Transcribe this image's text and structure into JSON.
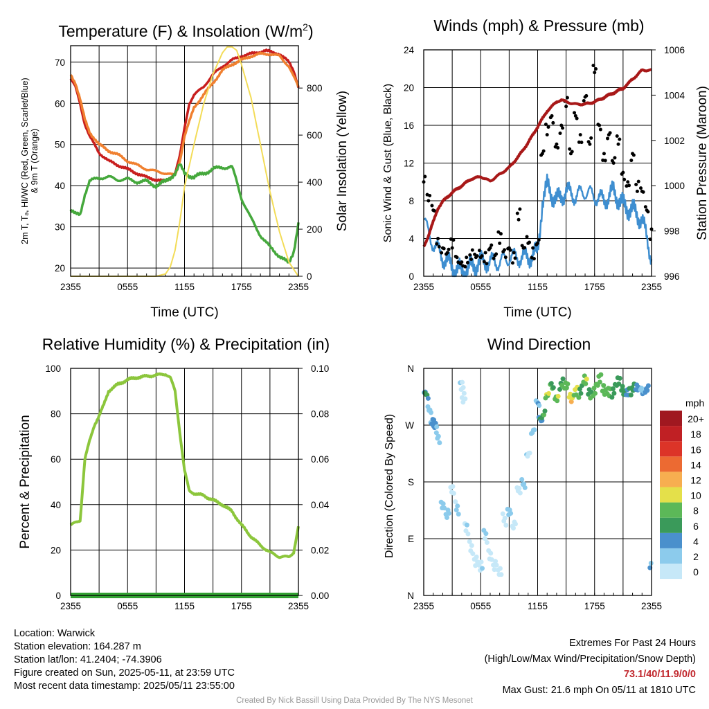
{
  "colors": {
    "red": "#c81e1e",
    "orange": "#f08030",
    "green": "#45a83c",
    "yellow": "#f3dc58",
    "blue": "#3e8ed0",
    "black": "#000000",
    "maroon": "#a81818",
    "rh": "#8cc63c",
    "precip": "#32a032"
  },
  "chart_data": [
    {
      "type": "line",
      "title": "Temperature (F) & Insolation (W/m²)",
      "xlabel": "Time (UTC)",
      "ylabel": "2m T, Td, HI/WC (Red, Green, Scarlet/Blue) & 9m T (Orange)",
      "ylabel_line1": "2m T, Tₔ, HI/WC (Red, Green, Scarlet/Blue)",
      "ylabel_line2": "& 9m T (Orange)",
      "y2label": "Solar Insolation (Yellow)",
      "x_ticks": [
        "2355",
        "0555",
        "1155",
        "1755",
        "2355"
      ],
      "ylim": [
        18,
        74
      ],
      "y_ticks": [
        20,
        30,
        40,
        50,
        60,
        70
      ],
      "y2lim": [
        0,
        980
      ],
      "y2_ticks": [
        0,
        200,
        400,
        600,
        800
      ],
      "grid": true,
      "series": [
        {
          "name": "2m T",
          "color_key": "red",
          "axis": "left",
          "x": [
            0,
            0.5,
            1,
            1.5,
            2,
            3,
            4,
            5,
            6,
            7,
            8,
            9,
            10,
            11,
            11.5,
            12,
            12.5,
            13,
            14,
            15,
            16,
            17,
            18,
            19,
            20,
            20.5,
            21,
            22,
            23,
            23.5,
            24
          ],
          "y": [
            66,
            64,
            60,
            55,
            52,
            48,
            46,
            45,
            44,
            43,
            42,
            41.5,
            41,
            43,
            47,
            54,
            60,
            62,
            64,
            67,
            69,
            70.5,
            71.5,
            72,
            72.5,
            72.8,
            72.5,
            72,
            70,
            68,
            64
          ]
        },
        {
          "name": "9m T",
          "color_key": "orange",
          "axis": "left",
          "x": [
            0,
            0.5,
            1,
            1.5,
            2,
            3,
            4,
            5,
            6,
            7,
            8,
            9,
            10,
            11,
            11.5,
            12,
            13,
            14,
            15,
            16,
            17,
            18,
            19,
            20,
            21,
            22,
            23,
            24
          ],
          "y": [
            67,
            65,
            61,
            56,
            53,
            50,
            48.5,
            47.5,
            46,
            45,
            44,
            43.5,
            43,
            42.5,
            46,
            52,
            59,
            62,
            65,
            68,
            69.5,
            70.5,
            71.5,
            72,
            72,
            71.5,
            69,
            64
          ]
        },
        {
          "name": "2m Td",
          "color_key": "green",
          "axis": "left",
          "x": [
            0,
            0.5,
            1,
            1.5,
            2,
            3,
            4,
            5,
            6,
            7,
            8,
            9,
            10,
            11,
            11.5,
            12,
            13,
            14,
            15,
            16,
            17,
            17.5,
            18,
            19,
            20,
            21,
            22,
            23,
            23.5,
            24
          ],
          "y": [
            34,
            33,
            33,
            38,
            41,
            42,
            42,
            41.5,
            41.5,
            41,
            41,
            40,
            41,
            43,
            45,
            43,
            42,
            43,
            44,
            44.5,
            44.5,
            41,
            37,
            32,
            28,
            25,
            23,
            21,
            24,
            31
          ]
        },
        {
          "name": "Solar Insolation",
          "color_key": "yellow",
          "axis": "right",
          "x": [
            0,
            9,
            10,
            10.5,
            11,
            11.5,
            12,
            13,
            14,
            15,
            16,
            16.5,
            17,
            17.5,
            18,
            19,
            20,
            21,
            22,
            23,
            24
          ],
          "y": [
            0,
            0,
            10,
            40,
            110,
            230,
            380,
            560,
            730,
            860,
            950,
            975,
            975,
            960,
            900,
            760,
            560,
            360,
            190,
            60,
            0
          ]
        }
      ]
    },
    {
      "type": "scatter",
      "title": "Winds (mph) & Pressure (mb)",
      "xlabel": "Time (UTC)",
      "ylabel": "Sonic Wind & Gust (Blue, Black)",
      "y2label": "Station Pressure (Maroon)",
      "x_ticks": [
        "2355",
        "0555",
        "1155",
        "1755",
        "2355"
      ],
      "ylim": [
        0,
        24
      ],
      "y_ticks": [
        0,
        4,
        8,
        12,
        16,
        20,
        24
      ],
      "y2lim": [
        996,
        1006
      ],
      "y2_ticks": [
        996,
        998,
        1000,
        1002,
        1004,
        1006
      ],
      "grid": true,
      "series": [
        {
          "name": "Sonic Wind",
          "color_key": "blue",
          "axis": "left",
          "style": "line",
          "x": [
            0,
            0.5,
            1,
            2,
            3,
            4,
            5,
            6,
            7,
            8,
            9,
            10,
            11,
            12,
            12.5,
            13,
            14,
            15,
            16,
            17,
            18,
            19,
            20,
            21,
            22,
            23,
            24
          ],
          "y": [
            6,
            4.5,
            3.5,
            2,
            1,
            0.5,
            1,
            1.5,
            1.5,
            1.5,
            2,
            2,
            2,
            2.5,
            8,
            9.5,
            8,
            9,
            8.5,
            9,
            8.5,
            8,
            9,
            7.5,
            7,
            6,
            2
          ]
        },
        {
          "name": "Gust",
          "color_key": "black",
          "axis": "left",
          "style": "points",
          "x": [
            0,
            0.5,
            1,
            1.5,
            2,
            2.5,
            3,
            3.5,
            4,
            4.5,
            5,
            5.5,
            6,
            6.5,
            7,
            7.5,
            8,
            8.5,
            9,
            9.5,
            10,
            10.5,
            11,
            11.5,
            12,
            12.5,
            13,
            13.5,
            14,
            14.5,
            15,
            15.5,
            16,
            16.5,
            17,
            17.5,
            18,
            18.5,
            19,
            19.5,
            20,
            20.5,
            21,
            21.5,
            22,
            22.5,
            23,
            23.5,
            24
          ],
          "y": [
            10,
            8,
            7,
            4,
            3,
            2.5,
            3,
            2,
            1.5,
            2,
            1.8,
            2,
            2,
            2.5,
            3,
            2.2,
            3.5,
            2.8,
            3,
            2.5,
            6,
            3,
            3.5,
            3,
            3.5,
            13,
            15,
            17,
            14,
            16,
            18,
            13,
            17,
            15,
            19,
            14,
            21.6,
            16,
            13,
            15,
            12,
            14,
            11,
            10,
            13,
            9,
            9,
            7,
            5
          ]
        },
        {
          "name": "Station Pressure",
          "color_key": "maroon",
          "axis": "right",
          "style": "line",
          "x": [
            0,
            0.5,
            1,
            1.5,
            2,
            3,
            4,
            5,
            6,
            7,
            8,
            9,
            10,
            11,
            12,
            13,
            13.5,
            14,
            14.5,
            15,
            16,
            17,
            18,
            19,
            20,
            21,
            22,
            23,
            24
          ],
          "y": [
            997.3,
            997.8,
            998.4,
            999.0,
            999.3,
            999.7,
            1000.0,
            1000.3,
            1000.4,
            1000.2,
            1000.5,
            1000.8,
            1001.3,
            1001.9,
            1002.6,
            1003.3,
            1003.5,
            1003.7,
            1003.8,
            1003.7,
            1003.6,
            1003.6,
            1003.7,
            1003.9,
            1004.1,
            1004.3,
            1004.7,
            1005.1,
            1005.1
          ]
        }
      ]
    },
    {
      "type": "line",
      "title": "Relative Humidity (%) & Precipitation (in)",
      "ylabel": "Percent & Precipitation",
      "x_ticks": [
        "2355",
        "0555",
        "1155",
        "1755",
        "2355"
      ],
      "ylim": [
        0,
        100
      ],
      "y_ticks": [
        0,
        20,
        40,
        60,
        80,
        100
      ],
      "y2lim": [
        0,
        0.1
      ],
      "y2_ticks": [
        "0.00",
        "0.02",
        "0.04",
        "0.06",
        "0.08",
        "0.10"
      ],
      "grid": true,
      "series": [
        {
          "name": "Relative Humidity",
          "color_key": "rh",
          "axis": "left",
          "x": [
            0,
            0.5,
            1,
            1.5,
            2,
            2.5,
            3,
            3.5,
            4,
            5,
            6,
            7,
            8,
            9,
            10,
            10.5,
            11,
            11.5,
            12,
            12.5,
            13,
            14,
            15,
            16,
            17,
            18,
            19,
            20,
            21,
            22,
            23,
            23.5,
            24
          ],
          "y": [
            31,
            32,
            33,
            60,
            68,
            75,
            79,
            84,
            90,
            93,
            95,
            96,
            96.5,
            97,
            97.5,
            96,
            90,
            72,
            55,
            46,
            45,
            44,
            42,
            40,
            37,
            31,
            26,
            22,
            19,
            17,
            17,
            19,
            30
          ]
        },
        {
          "name": "Precipitation",
          "color_key": "precip",
          "axis": "right",
          "x": [
            0,
            24
          ],
          "y": [
            0,
            0
          ]
        }
      ]
    },
    {
      "type": "scatter",
      "title": "Wind Direction",
      "ylabel": "Direction (Colored By Speed)",
      "x_ticks": [
        "2355",
        "0555",
        "1155",
        "1755",
        "2355"
      ],
      "y_ticks": [
        "N",
        "E",
        "S",
        "W",
        "N"
      ],
      "ylim": [
        0,
        360
      ],
      "grid": true,
      "colorbar": {
        "title": "mph",
        "levels": [
          "0",
          "2",
          "4",
          "6",
          "8",
          "10",
          "12",
          "14",
          "16",
          "18",
          "20+"
        ],
        "colors": [
          "#c6e8f8",
          "#8ccbec",
          "#4a90cc",
          "#3a9a5a",
          "#5cb858",
          "#e4e04a",
          "#f7ae50",
          "#ec6a32",
          "#dc3428",
          "#c02024",
          "#a01820"
        ]
      },
      "points": [
        {
          "t": 0,
          "dir": 315,
          "spd": 5
        },
        {
          "t": 0.3,
          "dir": 312,
          "spd": 6
        },
        {
          "t": 0.6,
          "dir": 300,
          "spd": 4
        },
        {
          "t": 0.9,
          "dir": 280,
          "spd": 4
        },
        {
          "t": 1.2,
          "dir": 262,
          "spd": 4
        },
        {
          "t": 1.5,
          "dir": 248,
          "spd": 3
        },
        {
          "t": 2,
          "dir": 150,
          "spd": 3
        },
        {
          "t": 2.5,
          "dir": 130,
          "spd": 3
        },
        {
          "t": 3,
          "dir": 160,
          "spd": 2
        },
        {
          "t": 3.5,
          "dir": 140,
          "spd": 2
        },
        {
          "t": 4,
          "dir": 340,
          "spd": 1
        },
        {
          "t": 4.2,
          "dir": 310,
          "spd": 1
        },
        {
          "t": 4.5,
          "dir": 100,
          "spd": 1
        },
        {
          "t": 5,
          "dir": 80,
          "spd": 1
        },
        {
          "t": 5.5,
          "dir": 60,
          "spd": 2
        },
        {
          "t": 6,
          "dir": 40,
          "spd": 1
        },
        {
          "t": 6.5,
          "dir": 90,
          "spd": 2
        },
        {
          "t": 7,
          "dir": 70,
          "spd": 1
        },
        {
          "t": 7.5,
          "dir": 50,
          "spd": 1
        },
        {
          "t": 8,
          "dir": 30,
          "spd": 1
        },
        {
          "t": 8.5,
          "dir": 120,
          "spd": 2
        },
        {
          "t": 9,
          "dir": 140,
          "spd": 2
        },
        {
          "t": 9.5,
          "dir": 110,
          "spd": 1
        },
        {
          "t": 10,
          "dir": 160,
          "spd": 2
        },
        {
          "t": 10.5,
          "dir": 180,
          "spd": 2
        },
        {
          "t": 11,
          "dir": 230,
          "spd": 2
        },
        {
          "t": 11.5,
          "dir": 255,
          "spd": 3
        },
        {
          "t": 12,
          "dir": 300,
          "spd": 3
        },
        {
          "t": 12.3,
          "dir": 285,
          "spd": 6
        },
        {
          "t": 12.6,
          "dir": 290,
          "spd": 8
        },
        {
          "t": 13,
          "dir": 310,
          "spd": 9
        },
        {
          "t": 13.5,
          "dir": 330,
          "spd": 8
        },
        {
          "t": 14,
          "dir": 320,
          "spd": 10
        },
        {
          "t": 14.5,
          "dir": 335,
          "spd": 7
        },
        {
          "t": 15,
          "dir": 325,
          "spd": 9
        },
        {
          "t": 15.5,
          "dir": 315,
          "spd": 12
        },
        {
          "t": 16,
          "dir": 330,
          "spd": 9
        },
        {
          "t": 16.5,
          "dir": 320,
          "spd": 8
        },
        {
          "t": 17,
          "dir": 335,
          "spd": 10
        },
        {
          "t": 17.5,
          "dir": 325,
          "spd": 7
        },
        {
          "t": 18,
          "dir": 330,
          "spd": 9
        },
        {
          "t": 18.5,
          "dir": 336,
          "spd": 10
        },
        {
          "t": 19,
          "dir": 322,
          "spd": 8
        },
        {
          "t": 19.5,
          "dir": 330,
          "spd": 9
        },
        {
          "t": 20,
          "dir": 326,
          "spd": 7
        },
        {
          "t": 20.5,
          "dir": 332,
          "spd": 6
        },
        {
          "t": 21,
          "dir": 325,
          "spd": 7
        },
        {
          "t": 21.5,
          "dir": 330,
          "spd": 6
        },
        {
          "t": 22,
          "dir": 325,
          "spd": 6
        },
        {
          "t": 22.5,
          "dir": 322,
          "spd": 5
        },
        {
          "t": 23,
          "dir": 328,
          "spd": 4
        },
        {
          "t": 23.5,
          "dir": 333,
          "spd": 4
        },
        {
          "t": 24,
          "dir": 45,
          "spd": 4
        }
      ]
    }
  ],
  "info": {
    "location": "Location: Warwick",
    "elevation": "Station elevation: 164.287 m",
    "latlon": "Station lat/lon: 41.2404; -74.3906",
    "created": "Figure created on Sun, 2025-05-11, at 23:59 UTC",
    "recent": "Most recent data timestamp: 2025/05/11 23:55:00"
  },
  "extremes": {
    "title": "Extremes For Past 24 Hours",
    "subtitle": "(High/Low/Max Wind/Precipitation/Snow Depth)",
    "values": "73.1/40/11.9/0/0",
    "gust": "Max Gust: 21.6 mph On 05/11 at 1810 UTC"
  },
  "credit": "Created By Nick Bassill Using Data Provided By The NYS Mesonet"
}
